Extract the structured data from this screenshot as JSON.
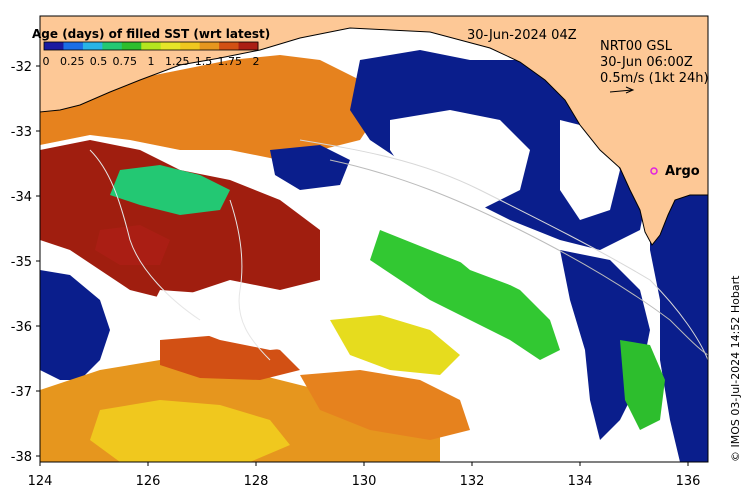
{
  "colorbar": {
    "title": "Age (days) of filled SST (wrt latest)",
    "ticks": [
      "0",
      "0.25",
      "0.5",
      "0.75",
      "1",
      "1.25",
      "1.5",
      "1.75",
      "2"
    ],
    "colors": [
      "#1a1aa0",
      "#1a6ee6",
      "#28b4e6",
      "#23c873",
      "#2dbe2d",
      "#b4e61e",
      "#e6e628",
      "#f0c81e",
      "#e6961e",
      "#d25014",
      "#aa1e14"
    ]
  },
  "header": {
    "date": "30-Jun-2024 04Z",
    "product": "NRT00 GSL",
    "time": "30-Jun 06:00Z",
    "scale_label": "0.5m/s (1kt 24h)"
  },
  "argo": {
    "label": "Argo",
    "marker_color": "#e020e0"
  },
  "axes": {
    "x_ticks": [
      "124",
      "126",
      "128",
      "130",
      "132",
      "134",
      "136"
    ],
    "y_ticks": [
      "-32",
      "-33",
      "-34",
      "-35",
      "-36",
      "-37",
      "-38"
    ]
  },
  "credit": "© IMOS 03-Jul-2024 14:52 Hobart",
  "colors": {
    "land": "#fdc896",
    "deep_blue": "#0a1e8c",
    "orange": "#e6821e",
    "dark_red": "#a01e0f",
    "green": "#32c832",
    "yellow": "#e6dc1e"
  }
}
